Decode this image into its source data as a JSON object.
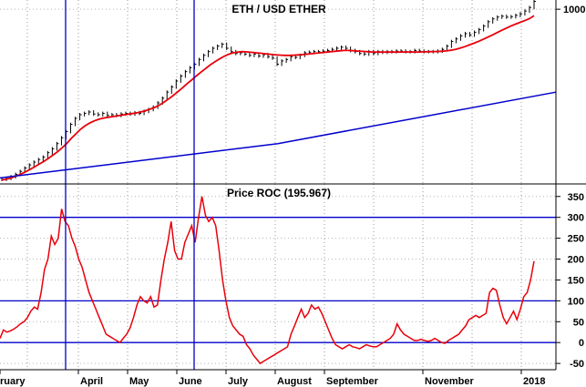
{
  "chart_data": [
    {
      "type": "line",
      "title": "ETH / USD ETHER",
      "yscale": "log",
      "yticks": [
        1000
      ],
      "ytick_labels": [
        "1000"
      ],
      "ylim": [
        7,
        1300
      ],
      "grid": true,
      "series": [
        {
          "kind": "price-bars",
          "color": "#000000",
          "values": [
            8,
            8.2,
            8.6,
            9.2,
            10,
            11,
            12,
            13,
            14,
            15,
            17,
            19,
            22,
            26,
            31,
            38,
            45,
            50,
            52,
            54,
            51,
            50,
            52,
            49,
            50,
            49,
            51,
            52,
            51,
            53,
            52,
            55,
            58,
            62,
            70,
            80,
            95,
            110,
            130,
            150,
            170,
            190,
            210,
            240,
            270,
            300,
            330,
            350,
            370,
            330,
            300,
            285,
            290,
            280,
            270,
            280,
            265,
            275,
            260,
            250,
            210,
            230,
            240,
            260,
            255,
            270,
            290,
            295,
            300,
            300,
            305,
            310,
            320,
            330,
            340,
            330,
            310,
            300,
            285,
            280,
            300,
            285,
            300,
            295,
            300,
            300,
            305,
            305,
            300,
            300,
            310,
            305,
            300,
            300,
            300,
            305,
            320,
            350,
            400,
            430,
            470,
            500,
            480,
            520,
            560,
            620,
            700,
            760,
            800,
            820,
            800,
            810,
            840,
            880,
            950,
            1050,
            1250
          ]
        },
        {
          "kind": "moving-average",
          "color": "#e8000b",
          "values": [
            7.8,
            8,
            8.3,
            8.7,
            9.2,
            9.8,
            10.5,
            11.3,
            12.2,
            13.2,
            14.4,
            15.8,
            17.4,
            19.5,
            22,
            25.5,
            29,
            33,
            36.5,
            39.5,
            42,
            44,
            45.5,
            46.5,
            47.5,
            48.5,
            49.5,
            50.5,
            51.5,
            52.5,
            54,
            56,
            58.5,
            61.5,
            65.5,
            71,
            78,
            86,
            96,
            107,
            120,
            134,
            150,
            167,
            185,
            205,
            224,
            243,
            262,
            278,
            290,
            297,
            300,
            298,
            294,
            290,
            286,
            282,
            278,
            275,
            272,
            270,
            270,
            271,
            273,
            276,
            279,
            283,
            287,
            291,
            295,
            299,
            303,
            307,
            310,
            310,
            308,
            305,
            302,
            299,
            297,
            296,
            296,
            296,
            296,
            296,
            296,
            297,
            297,
            297,
            297,
            298,
            299,
            300,
            301,
            303,
            306,
            312,
            320,
            331,
            345,
            362,
            381,
            402,
            425,
            452,
            482,
            515,
            550,
            585,
            620,
            655,
            690,
            725,
            765,
            830
          ]
        }
      ],
      "trendline": {
        "color": "#0000cc",
        "values": [
          8.3,
          22,
          95
        ]
      }
    },
    {
      "type": "line",
      "title": "Price ROC (195.967)",
      "ylim": [
        -65,
        380
      ],
      "yticks": [
        -50,
        0,
        50,
        100,
        150,
        200,
        250,
        300,
        350
      ],
      "ytick_labels": [
        "-50",
        "0",
        "50",
        "100",
        "150",
        "200",
        "250",
        "300",
        "350"
      ],
      "reference_lines": [
        0,
        100,
        300
      ],
      "x_labels": [
        "ruary",
        "April",
        "May",
        "June",
        "July",
        "August",
        "September",
        "November",
        "2018"
      ],
      "series": [
        {
          "color": "#e8000b",
          "values": [
            10,
            30,
            25,
            28,
            32,
            38,
            45,
            50,
            60,
            75,
            85,
            80,
            120,
            175,
            200,
            255,
            235,
            250,
            320,
            290,
            280,
            250,
            230,
            200,
            180,
            150,
            120,
            100,
            80,
            60,
            40,
            20,
            15,
            10,
            5,
            0,
            10,
            20,
            35,
            60,
            90,
            110,
            100,
            95,
            110,
            85,
            90,
            150,
            200,
            240,
            290,
            220,
            200,
            200,
            240,
            260,
            280,
            240,
            300,
            350,
            305,
            290,
            300,
            280,
            220,
            150,
            100,
            60,
            40,
            30,
            20,
            15,
            -5,
            -15,
            -30,
            -40,
            -50,
            -45,
            -40,
            -35,
            -30,
            -25,
            -20,
            -15,
            -10,
            20,
            40,
            60,
            80,
            60,
            70,
            90,
            80,
            85,
            70,
            50,
            30,
            10,
            -5,
            -10,
            -15,
            -10,
            -5,
            -10,
            -12,
            -15,
            -10,
            -5,
            -8,
            -10,
            -10,
            -5,
            0,
            5,
            10,
            20,
            45,
            30,
            20,
            15,
            10,
            5,
            5,
            8,
            5,
            3,
            5,
            10,
            5,
            0,
            -2,
            5,
            10,
            15,
            20,
            30,
            40,
            55,
            60,
            65,
            60,
            65,
            70,
            120,
            130,
            125,
            90,
            60,
            45,
            60,
            75,
            55,
            80,
            110,
            120,
            150,
            195
          ]
        }
      ]
    }
  ]
}
